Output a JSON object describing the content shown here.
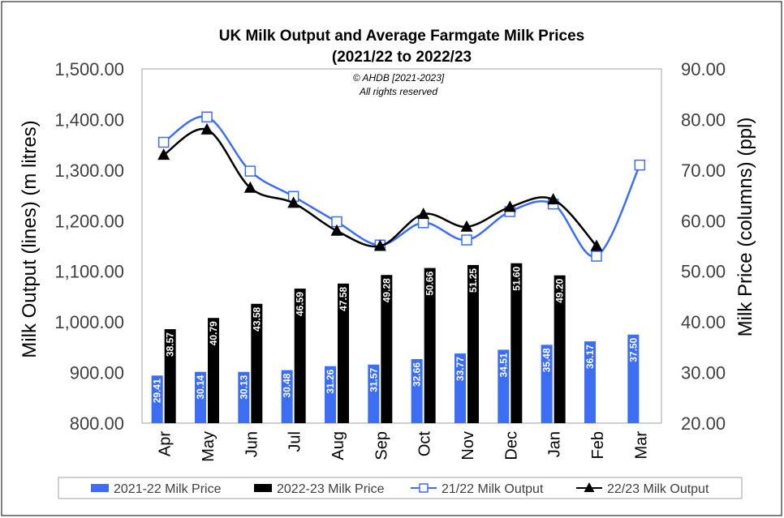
{
  "chart_data": {
    "type": "bar",
    "title_line1": "UK Milk Output and Average Farmgate Milk Prices",
    "title_line2": "(2021/22 to 2022/23",
    "copyright_line1": "© AHDB [2021-2023]",
    "copyright_line2": "All rights reserved",
    "ylabel_left": "Milk Output (lines) (m litres)",
    "ylabel_right": "Milk Price (columns) (ppl)",
    "ylim_left": [
      800,
      1500
    ],
    "ylim_right": [
      20,
      90
    ],
    "yticks_left": [
      "800.00",
      "900.00",
      "1,000.00",
      "1,100.00",
      "1,200.00",
      "1,300.00",
      "1,400.00",
      "1,500.00"
    ],
    "yticks_right": [
      "20.00",
      "30.00",
      "40.00",
      "50.00",
      "60.00",
      "70.00",
      "80.00",
      "90.00"
    ],
    "categories": [
      "Apr",
      "May",
      "Jun",
      "Jul",
      "Aug",
      "Sep",
      "Oct",
      "Nov",
      "Dec",
      "Jan",
      "Feb",
      "Mar"
    ],
    "legend_position": "bottom",
    "series": [
      {
        "name": "2021-22 Milk Price",
        "kind": "bar",
        "axis": "right",
        "color": "#3b6ef5",
        "values": [
          29.41,
          30.14,
          30.13,
          30.48,
          31.26,
          31.57,
          32.66,
          33.77,
          34.51,
          35.48,
          36.17,
          37.5
        ],
        "labels": [
          "29.41",
          "30.14",
          "30.13",
          "30.48",
          "31.26",
          "31.57",
          "32.66",
          "33.77",
          "34.51",
          "35.48",
          "36.17",
          "37.50"
        ]
      },
      {
        "name": "2022-23 Milk Price",
        "kind": "bar",
        "axis": "right",
        "color": "#000000",
        "values": [
          38.57,
          40.79,
          43.58,
          46.59,
          47.58,
          49.28,
          50.66,
          51.25,
          51.6,
          49.2,
          null,
          null
        ],
        "labels": [
          "38.57",
          "40.79",
          "43.58",
          "46.59",
          "47.58",
          "49.28",
          "50.66",
          "51.25",
          "51.60",
          "49.20",
          "",
          ""
        ]
      },
      {
        "name": "21/22 Milk Output",
        "kind": "line",
        "axis": "left",
        "color": "#3b6ef5",
        "marker": "square",
        "values": [
          1355,
          1405,
          1298,
          1248,
          1198,
          1152,
          1196,
          1162,
          1218,
          1233,
          1130,
          1310
        ]
      },
      {
        "name": "22/23 Milk Output",
        "kind": "line",
        "axis": "left",
        "color": "#000000",
        "marker": "triangle",
        "values": [
          1330,
          1380,
          1265,
          1235,
          1180,
          1150,
          1213,
          1188,
          1227,
          1242,
          1150,
          null
        ]
      }
    ]
  }
}
